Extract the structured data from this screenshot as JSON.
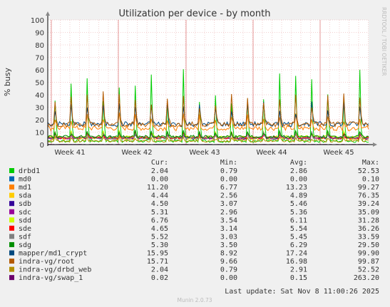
{
  "colors": {
    "background": "#f0f0f0",
    "plot_bg": "#ffffff",
    "grid": "#e6a0a0",
    "axis": "#000000",
    "text": "#333333",
    "watermark": "#bbbbbb"
  },
  "chart_data": {
    "type": "line",
    "title": "Utilization per device - by month",
    "ylabel": "% busy",
    "ylim": [
      0,
      100
    ],
    "yticks": [
      "0",
      "10",
      "20",
      "30",
      "40",
      "50",
      "60",
      "70",
      "80",
      "90",
      "100"
    ],
    "xticks": [
      "Week 41",
      "Week 42",
      "Week 43",
      "Week 44",
      "Week 45"
    ],
    "grid": true,
    "watermark": "RRDTOOL / TOBI OETIKER",
    "footer": "Munin 2.0.73",
    "last_update": "Last update: Sat Nov  8 11:00:26 2025",
    "legend_headers": [
      "Cur:",
      "Min:",
      "Avg:",
      "Max:"
    ],
    "series": [
      {
        "name": "drbd1",
        "color": "#00cc00",
        "cur": "2.04",
        "min": "0.79",
        "avg": "2.86",
        "max": "52.53",
        "base": 2.9,
        "spike": 50,
        "noise": 1.2
      },
      {
        "name": "md0",
        "color": "#0066b3",
        "cur": "0.00",
        "min": "0.00",
        "avg": "0.00",
        "max": "0.10",
        "base": 0.0,
        "spike": 0,
        "noise": 0
      },
      {
        "name": "md1",
        "color": "#ff8000",
        "cur": "11.20",
        "min": "6.77",
        "avg": "13.23",
        "max": "99.27",
        "base": 13.2,
        "spike": 10,
        "noise": 2
      },
      {
        "name": "sda",
        "color": "#ffcc00",
        "cur": "4.44",
        "min": "2.56",
        "avg": "4.89",
        "max": "76.35",
        "base": 4.9,
        "spike": 5,
        "noise": 1
      },
      {
        "name": "sdb",
        "color": "#330099",
        "cur": "4.50",
        "min": "3.07",
        "avg": "5.46",
        "max": "39.24",
        "base": 5.4,
        "spike": 4,
        "noise": 1
      },
      {
        "name": "sdc",
        "color": "#990099",
        "cur": "5.31",
        "min": "2.96",
        "avg": "5.36",
        "max": "35.09",
        "base": 5.3,
        "spike": 4,
        "noise": 1
      },
      {
        "name": "sdd",
        "color": "#ccff00",
        "cur": "6.76",
        "min": "3.54",
        "avg": "6.11",
        "max": "31.28",
        "base": 6.1,
        "spike": 5,
        "noise": 1.2
      },
      {
        "name": "sde",
        "color": "#ff0000",
        "cur": "4.65",
        "min": "3.14",
        "avg": "5.54",
        "max": "36.26",
        "base": 5.5,
        "spike": 4,
        "noise": 1
      },
      {
        "name": "sdf",
        "color": "#808080",
        "cur": "5.52",
        "min": "3.03",
        "avg": "5.45",
        "max": "33.59",
        "base": 5.4,
        "spike": 4,
        "noise": 1
      },
      {
        "name": "sdg",
        "color": "#008f00",
        "cur": "5.30",
        "min": "3.50",
        "avg": "6.29",
        "max": "29.50",
        "base": 6.3,
        "spike": 4,
        "noise": 1.2
      },
      {
        "name": "mapper/md1_crypt",
        "color": "#00487d",
        "cur": "15.95",
        "min": "8.92",
        "avg": "17.24",
        "max": "99.90",
        "base": 16.5,
        "spike": 15,
        "noise": 2
      },
      {
        "name": "indra-vg/root",
        "color": "#b35a00",
        "cur": "15.71",
        "min": "9.66",
        "avg": "16.98",
        "max": "99.87",
        "base": 16.3,
        "spike": 22,
        "noise": 2
      },
      {
        "name": "indra-vg/drbd_web",
        "color": "#b38f00",
        "cur": "2.04",
        "min": "0.79",
        "avg": "2.91",
        "max": "52.52",
        "base": 2.9,
        "spike": 3,
        "noise": 1
      },
      {
        "name": "indra-vg/swap_1",
        "color": "#6b006b",
        "cur": "0.02",
        "min": "0.00",
        "avg": "0.15",
        "max": "263.20",
        "base": 0.1,
        "spike": 0,
        "noise": 0.1
      }
    ]
  }
}
